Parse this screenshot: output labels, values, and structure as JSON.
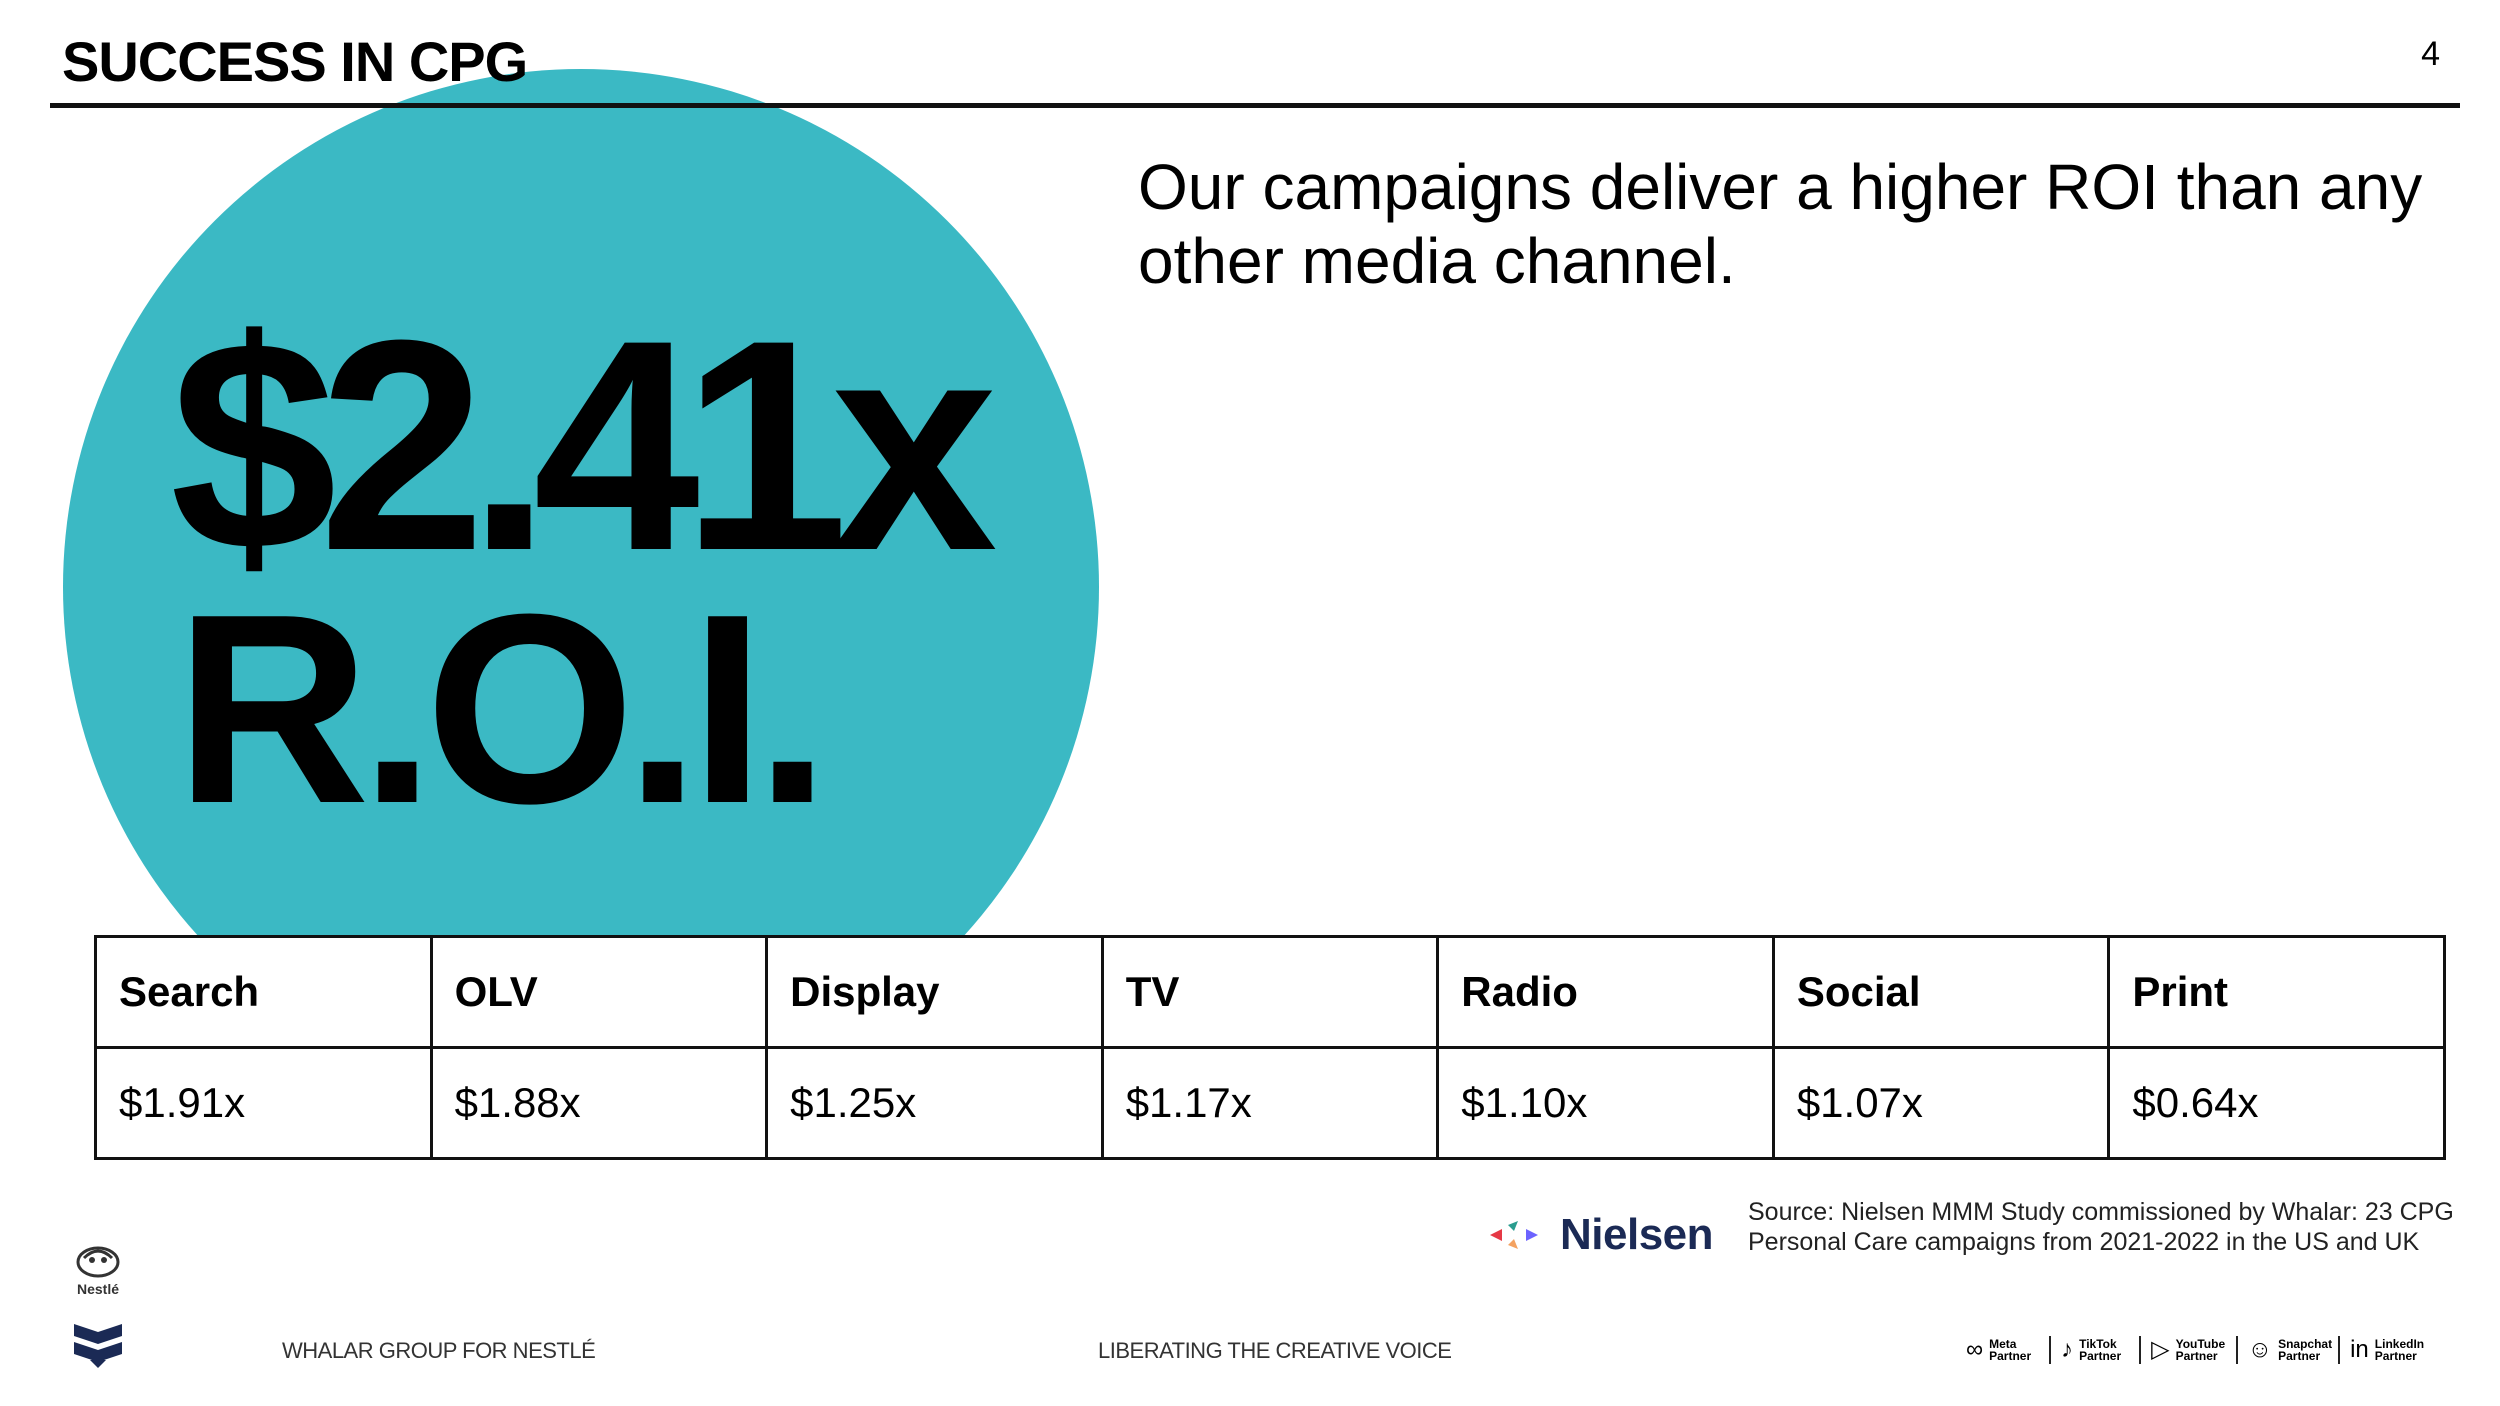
{
  "header": {
    "title": "SUCCESS IN CPG",
    "page_number": "4"
  },
  "headline": "Our campaigns deliver a higher ROI than any other media channel.",
  "stat": {
    "value": "$2.41x",
    "label": "R.O.I."
  },
  "roi_table": {
    "channels": [
      "Search",
      "OLV",
      "Display",
      "TV",
      "Radio",
      "Social",
      "Print"
    ],
    "values": [
      "$1.91x",
      "$1.88x",
      "$1.25x",
      "$1.17x",
      "$1.10x",
      "$1.07x",
      "$0.64x"
    ]
  },
  "source": {
    "logo_text": "Nielsen",
    "note": "Source: Nielsen MMM Study commissioned by Whalar: 23 CPG Personal Care campaigns from 2021-2022 in the US and UK"
  },
  "footer": {
    "logo_nestle": "Nestlé",
    "left": "WHALAR GROUP FOR NESTLÉ",
    "middle": "LIBERATING THE CREATIVE VOICE",
    "partners": [
      {
        "label": "Meta Partner",
        "icon": "meta-icon"
      },
      {
        "label": "TikTok Partner",
        "icon": "tiktok-icon"
      },
      {
        "label": "YouTube Partner",
        "icon": "youtube-icon"
      },
      {
        "label": "Snapchat Partner",
        "icon": "snapchat-icon"
      },
      {
        "label": "LinkedIn Partner",
        "icon": "linkedin-icon"
      }
    ]
  },
  "colors": {
    "accent_circle": "#3bb9c4",
    "nielsen_text": "#1b2a55"
  }
}
